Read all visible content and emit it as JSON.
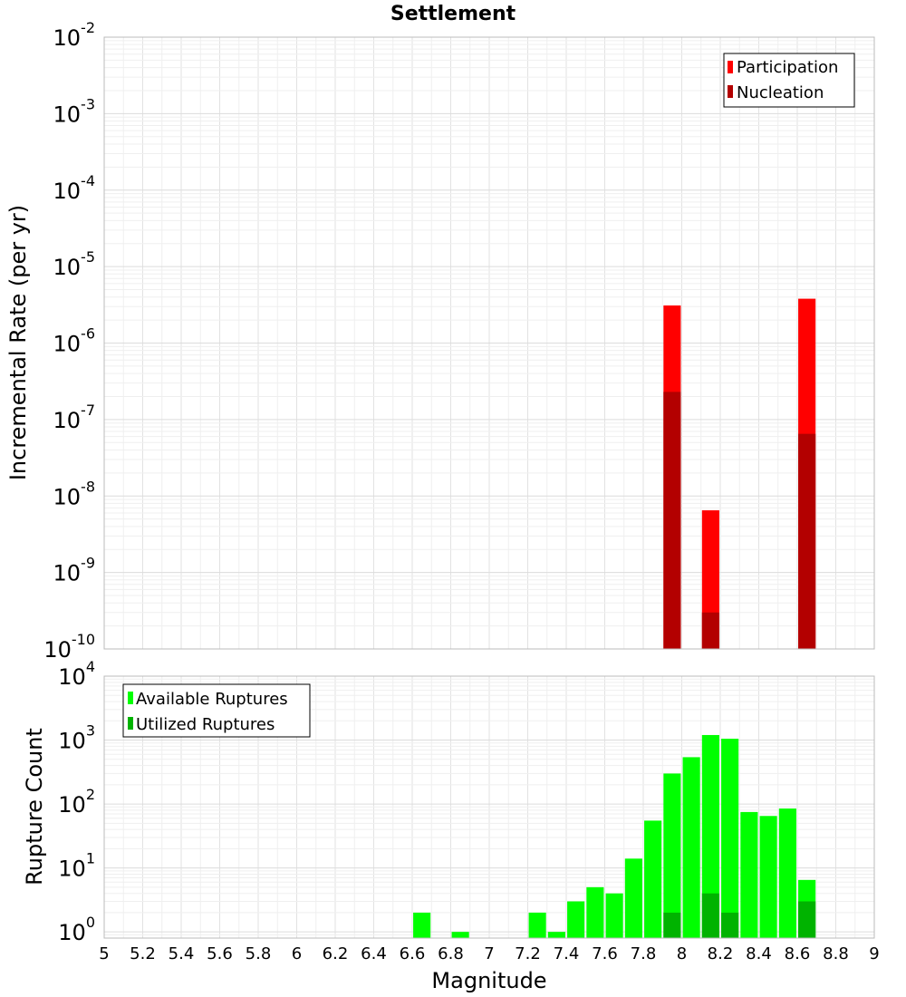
{
  "chart_data": [
    {
      "type": "bar",
      "title": "Settlement",
      "xlabel": "",
      "ylabel": "Incremental Rate (per yr)",
      "yscale": "log",
      "xlim": [
        5,
        9
      ],
      "ylim": [
        1e-10,
        0.01
      ],
      "bar_width": 0.09,
      "grid": true,
      "legend_position": "top-right",
      "series": [
        {
          "name": "Participation",
          "color": "#ff0000",
          "x": [
            7.95,
            8.15,
            8.65
          ],
          "values": [
            3.1e-06,
            6.5e-09,
            3.8e-06
          ]
        },
        {
          "name": "Nucleation",
          "color": "#b30000",
          "x": [
            7.95,
            8.15,
            8.65
          ],
          "values": [
            2.3e-07,
            3e-10,
            6.5e-08
          ]
        }
      ]
    },
    {
      "type": "bar",
      "title": "",
      "xlabel": "Magnitude",
      "ylabel": "Rupture Count",
      "yscale": "log",
      "xlim": [
        5,
        9
      ],
      "ylim": [
        0.8,
        10000
      ],
      "bar_width": 0.09,
      "grid": true,
      "legend_position": "top-left",
      "x_ticks": [
        "5",
        "5.2",
        "5.4",
        "5.6",
        "5.8",
        "6",
        "6.2",
        "6.4",
        "6.6",
        "6.8",
        "7",
        "7.2",
        "7.4",
        "7.6",
        "7.8",
        "8",
        "8.2",
        "8.4",
        "8.6",
        "8.8",
        "9"
      ],
      "series": [
        {
          "name": "Available Ruptures",
          "color": "#00ff00",
          "x": [
            6.65,
            6.85,
            7.25,
            7.35,
            7.45,
            7.55,
            7.65,
            7.75,
            7.85,
            7.95,
            8.05,
            8.15,
            8.25,
            8.35,
            8.45,
            8.55,
            8.65
          ],
          "values": [
            2,
            1,
            2,
            1,
            3,
            5,
            4,
            14,
            55,
            300,
            540,
            1200,
            1050,
            75,
            65,
            85,
            6.5
          ]
        },
        {
          "name": "Utilized Ruptures",
          "color": "#00b300",
          "x": [
            7.95,
            8.15,
            8.25,
            8.65
          ],
          "values": [
            2,
            4,
            2,
            3
          ]
        }
      ]
    }
  ]
}
